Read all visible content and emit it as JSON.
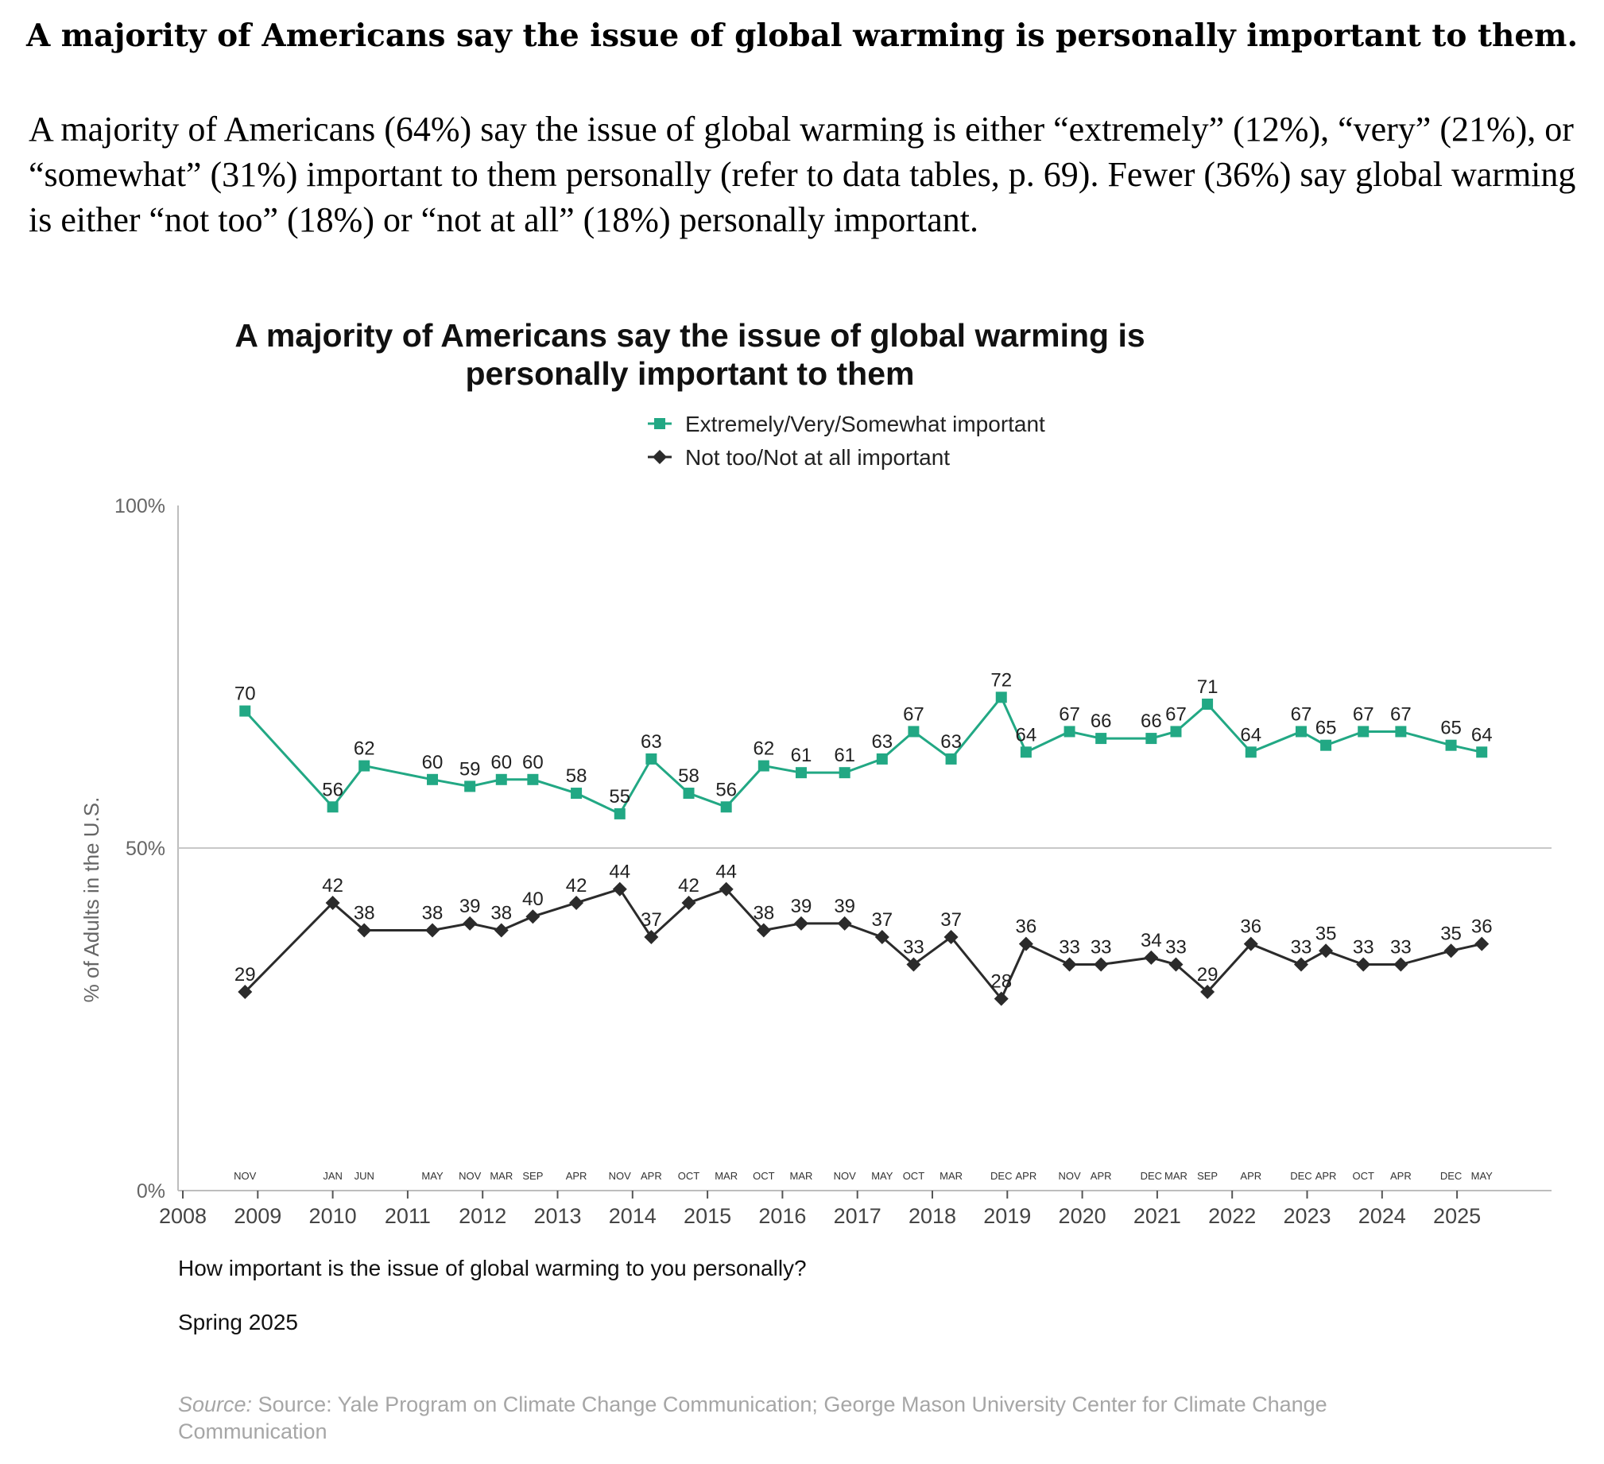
{
  "document": {
    "heading": "A majority of Americans say the issue of global warming is personally important to them.",
    "paragraph": "A majority of Americans (64%) say the issue of global warming is either “extremely” (12%), “very” (21%), or “somewhat” (31%) important to them personally (refer to data tables, p. 69). Fewer (36%) say global warming is either “not too” (18%) or “not at all” (18%) personally important."
  },
  "chart_data": {
    "type": "line",
    "title_line1": "A majority of Americans say the issue of global warming is",
    "title_line2": "personally important to them",
    "ylabel": "% of Adults in the U.S.",
    "ylim": [
      0,
      100
    ],
    "yticks": [
      "0%",
      "50%",
      "100%"
    ],
    "x_year_ticks": [
      "2008",
      "2009",
      "2010",
      "2011",
      "2012",
      "2013",
      "2014",
      "2015",
      "2016",
      "2017",
      "2018",
      "2019",
      "2020",
      "2021",
      "2022",
      "2023",
      "2024",
      "2025"
    ],
    "xlim": [
      2008,
      2026.4
    ],
    "gridlines": [
      50
    ],
    "legend_position": "top-center",
    "colors": {
      "important": "#22a884",
      "not_important": "#2b2b2b"
    },
    "points": [
      {
        "label": "NOV",
        "x": 2008.83,
        "important": 70,
        "not": 29
      },
      {
        "label": "JAN",
        "x": 2010.0,
        "important": 56,
        "not": 42
      },
      {
        "label": "JUN",
        "x": 2010.42,
        "important": 62,
        "not": 38
      },
      {
        "label": "MAY",
        "x": 2011.33,
        "important": 60,
        "not": 38
      },
      {
        "label": "NOV",
        "x": 2011.83,
        "important": 59,
        "not": 39
      },
      {
        "label": "MAR",
        "x": 2012.25,
        "important": 60,
        "not": 38
      },
      {
        "label": "SEP",
        "x": 2012.67,
        "important": 60,
        "not": 40
      },
      {
        "label": "APR",
        "x": 2013.25,
        "important": 58,
        "not": 42
      },
      {
        "label": "NOV",
        "x": 2013.83,
        "important": 55,
        "not": 44
      },
      {
        "label": "APR",
        "x": 2014.25,
        "important": 63,
        "not": 37
      },
      {
        "label": "OCT",
        "x": 2014.75,
        "important": 58,
        "not": 42
      },
      {
        "label": "MAR",
        "x": 2015.25,
        "important": 56,
        "not": 44
      },
      {
        "label": "OCT",
        "x": 2015.75,
        "important": 62,
        "not": 38
      },
      {
        "label": "MAR",
        "x": 2016.25,
        "important": 61,
        "not": 39
      },
      {
        "label": "NOV",
        "x": 2016.83,
        "important": 61,
        "not": 39
      },
      {
        "label": "MAY",
        "x": 2017.33,
        "important": 63,
        "not": 37
      },
      {
        "label": "OCT",
        "x": 2017.75,
        "important": 67,
        "not": 33
      },
      {
        "label": "MAR",
        "x": 2018.25,
        "important": 63,
        "not": 37
      },
      {
        "label": "DEC",
        "x": 2018.92,
        "important": 72,
        "not": 28
      },
      {
        "label": "APR",
        "x": 2019.25,
        "important": 64,
        "not": 36
      },
      {
        "label": "NOV",
        "x": 2019.83,
        "important": 67,
        "not": 33
      },
      {
        "label": "APR",
        "x": 2020.25,
        "important": 66,
        "not": 33
      },
      {
        "label": "DEC",
        "x": 2020.92,
        "important": 66,
        "not": 34
      },
      {
        "label": "MAR",
        "x": 2021.25,
        "important": 67,
        "not": 33
      },
      {
        "label": "SEP",
        "x": 2021.67,
        "important": 71,
        "not": 29
      },
      {
        "label": "APR",
        "x": 2022.25,
        "important": 64,
        "not": 36
      },
      {
        "label": "DEC",
        "x": 2022.92,
        "important": 67,
        "not": 33
      },
      {
        "label": "APR",
        "x": 2023.25,
        "important": 65,
        "not": 35
      },
      {
        "label": "OCT",
        "x": 2023.75,
        "important": 67,
        "not": 33
      },
      {
        "label": "APR",
        "x": 2024.25,
        "important": 67,
        "not": 33
      },
      {
        "label": "DEC",
        "x": 2024.92,
        "important": 65,
        "not": 35
      },
      {
        "label": "MAY",
        "x": 2025.33,
        "important": 64,
        "not": 36
      }
    ],
    "series": [
      {
        "key": "important",
        "name": "Extremely/Very/Somewhat important",
        "marker": "square"
      },
      {
        "key": "not",
        "name": "Not too/Not at all important",
        "marker": "diamond"
      }
    ],
    "question": "How important is the issue of global warming to you personally?",
    "wave": "Spring 2025",
    "source_prefix": "Source:",
    "source_text": "Source: Yale Program on Climate Change Communication; George Mason University Center for Climate Change Communication"
  }
}
